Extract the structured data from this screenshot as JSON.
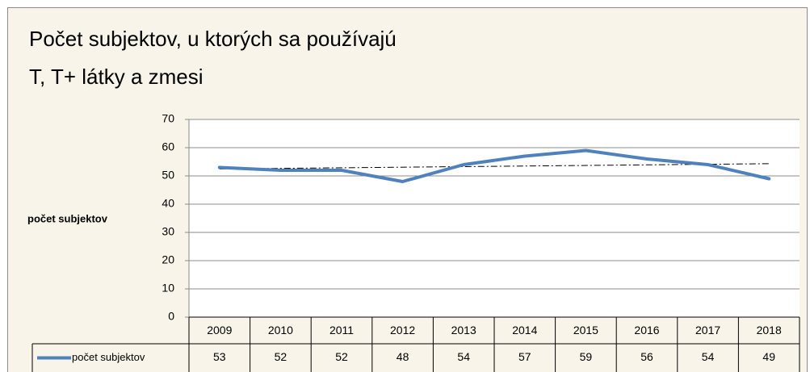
{
  "chart_data": {
    "type": "line",
    "title": [
      "Počet subjektov, u ktorých sa používajú",
      "T, T+ látky a zmesi"
    ],
    "y_label": "počet subjektov",
    "categories": [
      "2009",
      "2010",
      "2011",
      "2012",
      "2013",
      "2014",
      "2015",
      "2016",
      "2017",
      "2018"
    ],
    "series": [
      {
        "name": "počet subjektov",
        "color": "#4f81bd",
        "values": [
          53,
          52,
          52,
          48,
          54,
          57,
          59,
          56,
          54,
          49
        ]
      }
    ],
    "ylim": [
      0,
      70
    ],
    "yticks": [
      0,
      10,
      20,
      30,
      40,
      50,
      60,
      70
    ],
    "grid": true,
    "trendline": "linear",
    "data_table": true
  }
}
